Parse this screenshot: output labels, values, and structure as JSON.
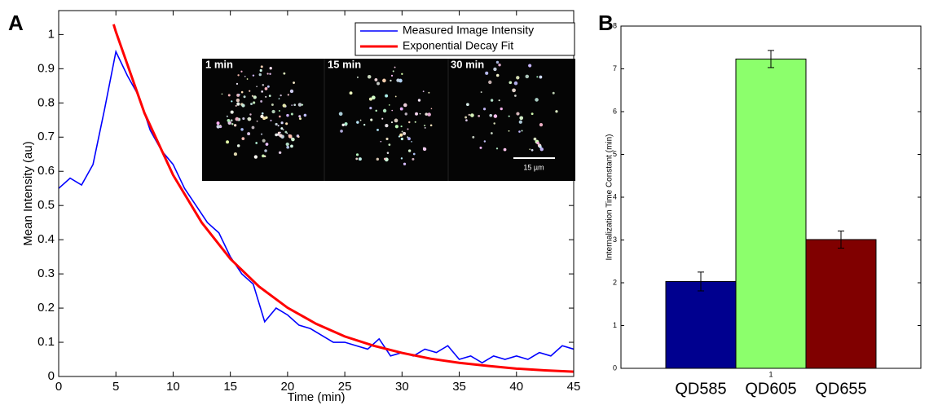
{
  "chart_data": [
    {
      "type": "line",
      "panel_label": "A",
      "xlabel": "Time (min)",
      "ylabel": "Mean Intensity (au)",
      "xlim": [
        0,
        45
      ],
      "ylim": [
        0,
        1.07
      ],
      "xticks": [
        0,
        5,
        10,
        15,
        20,
        25,
        30,
        35,
        40,
        45
      ],
      "yticks": [
        0,
        0.1,
        0.2,
        0.3,
        0.4,
        0.5,
        0.6,
        0.7,
        0.8,
        0.9,
        1
      ],
      "legend": "upper right",
      "series": [
        {
          "name": "Measured Image Intensity",
          "color": "#0000ff",
          "x": [
            0,
            1,
            2,
            3,
            4,
            5,
            6,
            7,
            8,
            9,
            10,
            11,
            12,
            13,
            14,
            15,
            16,
            17,
            18,
            19,
            20,
            21,
            22,
            23,
            24,
            25,
            26,
            27,
            28,
            29,
            30,
            31,
            32,
            33,
            34,
            35,
            36,
            37,
            38,
            39,
            40,
            41,
            42,
            43,
            44,
            45
          ],
          "values": [
            0.55,
            0.58,
            0.56,
            0.62,
            0.78,
            0.95,
            0.88,
            0.82,
            0.72,
            0.66,
            0.62,
            0.55,
            0.5,
            0.45,
            0.42,
            0.35,
            0.3,
            0.27,
            0.16,
            0.2,
            0.18,
            0.15,
            0.14,
            0.12,
            0.1,
            0.1,
            0.09,
            0.08,
            0.11,
            0.06,
            0.07,
            0.06,
            0.08,
            0.07,
            0.09,
            0.05,
            0.06,
            0.04,
            0.06,
            0.05,
            0.06,
            0.05,
            0.07,
            0.06,
            0.09,
            0.08
          ]
        },
        {
          "name": "Exponential Decay Fit",
          "color": "#ff0000",
          "x": [
            4.8,
            5,
            7.5,
            10,
            12.5,
            15,
            17.5,
            20,
            22.5,
            25,
            27.5,
            30,
            32.5,
            35,
            37.5,
            40,
            42.5,
            45
          ],
          "values": [
            1.03,
            1.008,
            0.77,
            0.589,
            0.45,
            0.344,
            0.263,
            0.201,
            0.154,
            0.117,
            0.09,
            0.069,
            0.052,
            0.04,
            0.031,
            0.023,
            0.018,
            0.014
          ]
        }
      ],
      "inset_labels": [
        "1 min",
        "15 min",
        "30 min"
      ],
      "scale_bar_label": "15 µm"
    },
    {
      "type": "bar",
      "panel_label": "B",
      "ylabel": "Internalization Time Constant (min)",
      "categories": [
        "QD585",
        "QD605",
        "QD655"
      ],
      "values": [
        2.03,
        7.23,
        3.01
      ],
      "errors": [
        0.22,
        0.2,
        0.2
      ],
      "colors": [
        "#00008f",
        "#8cff6c",
        "#800000"
      ],
      "xlim": [
        0.5,
        1.5
      ],
      "xticks": [
        1
      ],
      "ylim": [
        0,
        8
      ],
      "yticks": [
        0,
        1,
        2,
        3,
        4,
        5,
        6,
        7,
        8
      ]
    }
  ]
}
